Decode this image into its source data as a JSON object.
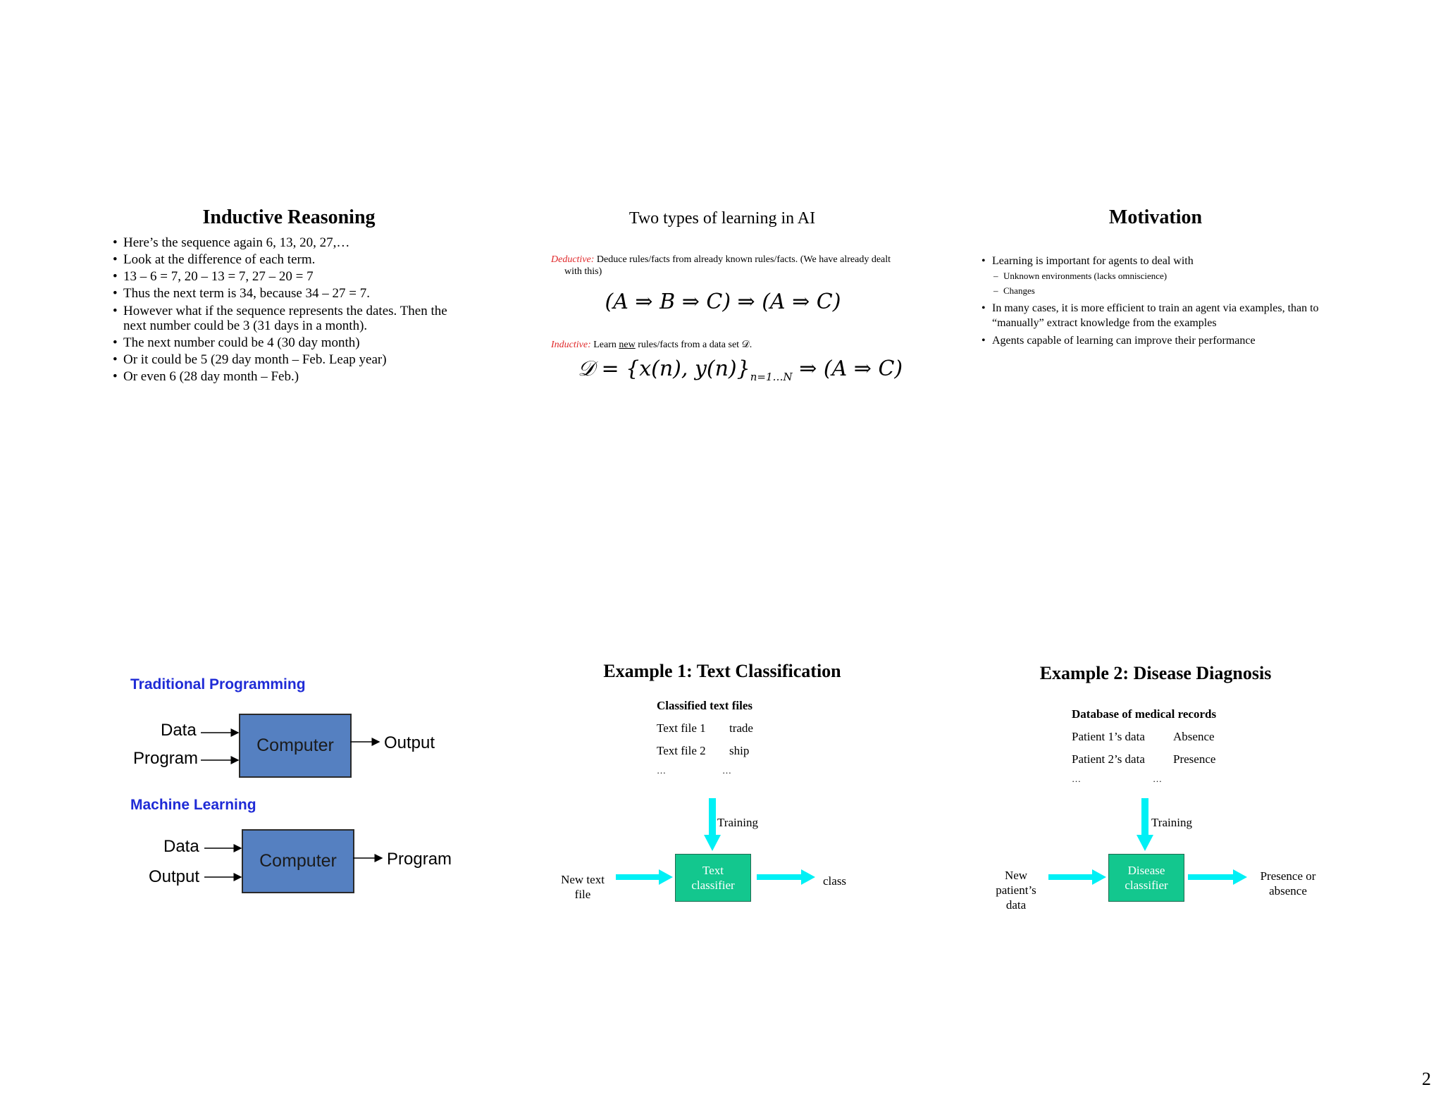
{
  "slide1": {
    "title": "Inductive Reasoning",
    "bullets": [
      "Here’s the sequence again 6, 13, 20, 27,…",
      "Look at the difference of each term.",
      "13 – 6 = 7, 20 – 13 = 7, 27 – 20 = 7",
      "Thus the next term is 34, because 34 – 27 = 7.",
      "However what if the sequence represents the dates. Then the next number could be 3 (31 days in a month).",
      "The next number could be 4 (30 day month)",
      "Or it could be 5 (29 day month – Feb. Leap year)",
      "Or even 6 (28 day month – Feb.)"
    ]
  },
  "slide2": {
    "title": "Two types of learning in AI",
    "deductive_label": "Deductive:",
    "deductive_text": "Deduce rules/facts from already known rules/facts. (We have already dealt with this)",
    "formula1": "(A ⇒ B ⇒ C) ⇒ (A ⇒ C)",
    "inductive_label": "Inductive:",
    "inductive_text_pre": "Learn",
    "inductive_text_new": "new",
    "inductive_text_post": "rules/facts from a data set 𝒟.",
    "formula2_lhs": "𝒟 = {x(n), y(n)}",
    "formula2_sub": "n=1…N",
    "formula2_rhs": "⇒ (A ⇒ C)"
  },
  "slide3": {
    "title": "Motivation",
    "bullet1": "Learning is important for agents to deal with",
    "sub_bullets": [
      "Unknown environments (lacks omniscience)",
      "Changes"
    ],
    "bullet2": "In many cases, it is more efficient to train an agent via examples, than to “manually” extract knowledge from the examples",
    "bullet3": "Agents capable of learning can improve their performance"
  },
  "slide4": {
    "traditional_heading": "Traditional Programming",
    "ml_heading": "Machine Learning",
    "trad_inputs": [
      "Data",
      "Program"
    ],
    "trad_box": "Computer",
    "trad_output": "Output",
    "ml_inputs": [
      "Data",
      "Output"
    ],
    "ml_box": "Computer",
    "ml_output": "Program"
  },
  "slide5": {
    "title": "Example 1: Text Classification",
    "table_header": "Classified text files",
    "rows": [
      [
        "Text file 1",
        "trade"
      ],
      [
        "Text file 2",
        "ship"
      ],
      [
        "…",
        "…"
      ]
    ],
    "training_label": "Training",
    "input_label": "New text file",
    "box_label": "Text classifier",
    "output_label": "class"
  },
  "slide6": {
    "title": "Example 2: Disease Diagnosis",
    "table_header": "Database of medical records",
    "rows": [
      [
        "Patient 1’s data",
        "Absence"
      ],
      [
        "Patient 2’s data",
        "Presence"
      ],
      [
        "…",
        "…"
      ]
    ],
    "training_label": "Training",
    "input_label": "New patient’s data",
    "box_label": "Disease classifier",
    "output_label": "Presence or absence"
  },
  "page_number": "2",
  "colors": {
    "accent_red": "#e0282a",
    "heading_blue": "#1f2bd6",
    "computer_box": "#5580c1",
    "classifier_box": "#13c78e",
    "arrow_cyan": "#00f0f5"
  }
}
